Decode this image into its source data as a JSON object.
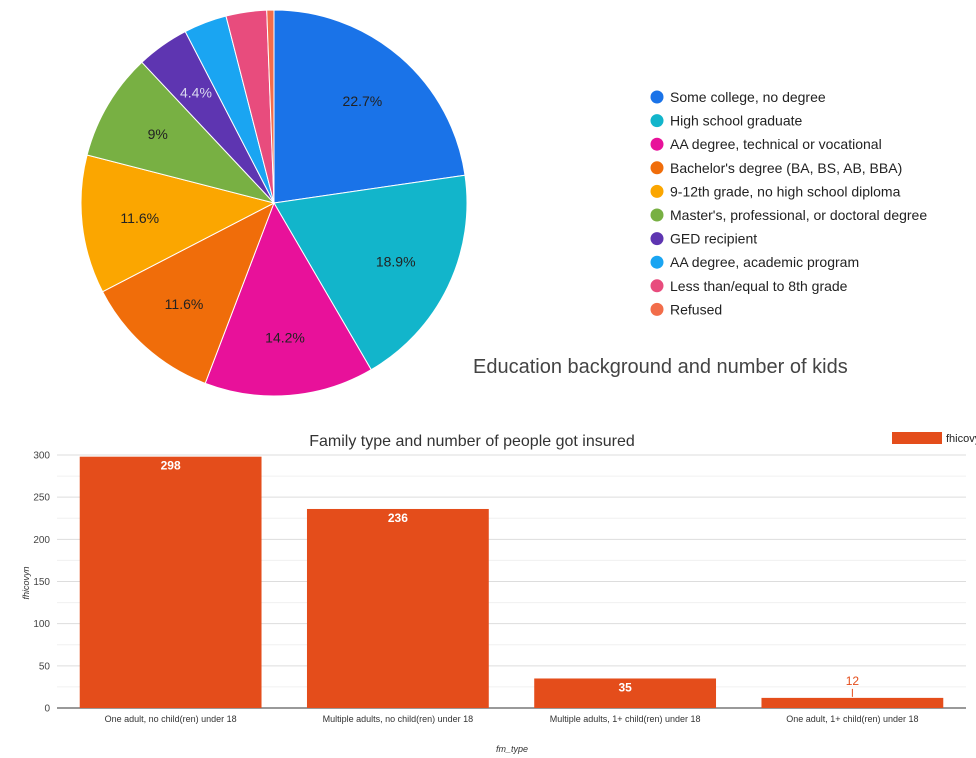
{
  "chart_data": [
    {
      "type": "pie",
      "title": "Education background and number of kids",
      "legend_position": "right",
      "slices": [
        {
          "label": "Some college, no degree",
          "value": 22.7,
          "display": "22.7%",
          "color": "#1a73e8"
        },
        {
          "label": "High school graduate",
          "value": 18.9,
          "display": "18.9%",
          "color": "#12b5cb"
        },
        {
          "label": "AA degree, technical or vocational",
          "value": 14.2,
          "display": "14.2%",
          "color": "#e8119a"
        },
        {
          "label": "Bachelor's degree (BA, BS, AB, BBA)",
          "value": 11.6,
          "display": "11.6%",
          "color": "#f06d0a"
        },
        {
          "label": "9-12th grade, no high school diploma",
          "value": 11.6,
          "display": "11.6%",
          "color": "#fba600"
        },
        {
          "label": "Master's, professional, or doctoral degree",
          "value": 9.0,
          "display": "9%",
          "color": "#78b043"
        },
        {
          "label": "GED recipient",
          "value": 4.4,
          "display": "4.4%",
          "color": "#5e35b1"
        },
        {
          "label": "AA degree, academic program",
          "value": 3.6,
          "display": "",
          "color": "#1aa5f2"
        },
        {
          "label": "Less than/equal to 8th grade",
          "value": 3.4,
          "display": "",
          "color": "#e84c7d"
        },
        {
          "label": "Refused",
          "value": 0.6,
          "display": "",
          "color": "#f26d4a"
        }
      ]
    },
    {
      "type": "bar",
      "title": "Family type and number of people got insured",
      "xlabel": "fm_type",
      "ylabel": "fhicovyn",
      "ylim": [
        0,
        300
      ],
      "yticks": [
        0,
        50,
        100,
        150,
        200,
        250,
        300
      ],
      "grid": true,
      "legend_position": "top-right",
      "categories": [
        "One adult, no child(ren) under 18",
        "Multiple adults, no child(ren) under 18",
        "Multiple adults, 1+ child(ren) under 18",
        "One adult, 1+ child(ren) under 18"
      ],
      "series": [
        {
          "name": "fhicovyn",
          "color": "#e44d1b",
          "values": [
            298,
            236,
            35,
            12
          ]
        }
      ]
    }
  ]
}
